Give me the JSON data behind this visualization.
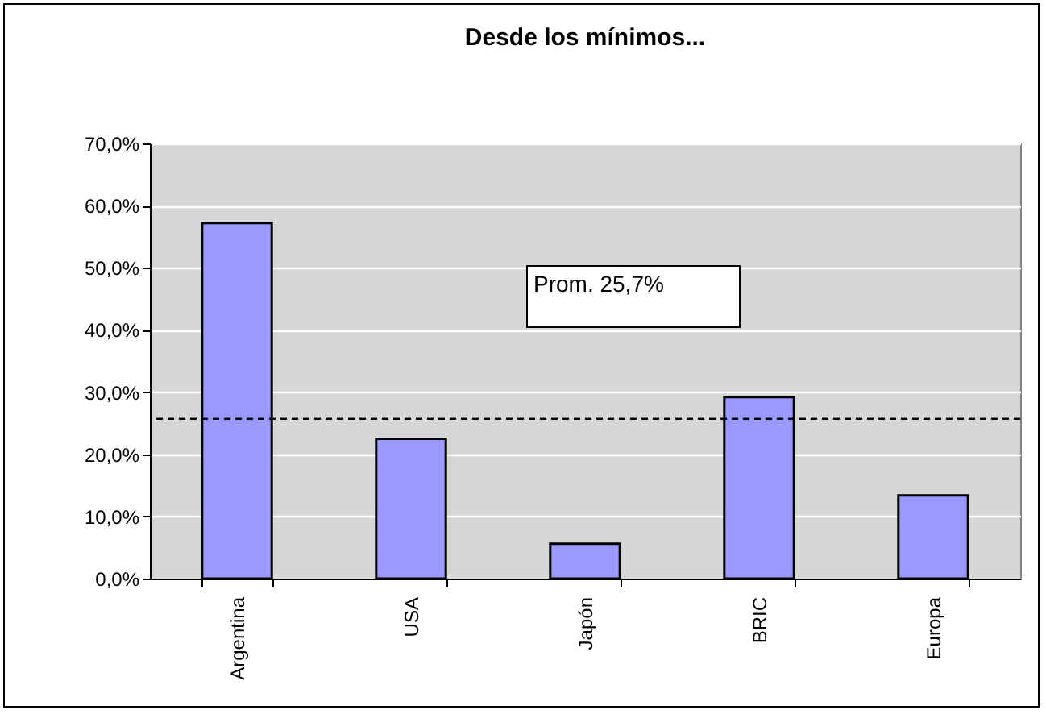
{
  "chart_data": {
    "type": "bar",
    "title": "Desde los mínimos...",
    "categories": [
      "Argentina",
      "USA",
      "Japón",
      "BRIC",
      "Europa"
    ],
    "values": [
      57.2,
      22.5,
      5.6,
      29.2,
      13.4
    ],
    "color": "#9999ff",
    "ylim": [
      0,
      70
    ],
    "yticks": [
      {
        "value": 0,
        "label": "0,0%"
      },
      {
        "value": 10,
        "label": "10,0%"
      },
      {
        "value": 20,
        "label": "20,0%"
      },
      {
        "value": 30,
        "label": "30,0%"
      },
      {
        "value": 40,
        "label": "40,0%"
      },
      {
        "value": 50,
        "label": "50,0%"
      },
      {
        "value": 60,
        "label": "60,0%"
      },
      {
        "value": 70,
        "label": "70,0%"
      }
    ],
    "grid": "y",
    "ref_lines": [
      {
        "axis": "y",
        "value": 25.7,
        "label": "Prom. 25,7%",
        "color": "#000000",
        "line_style": "dashed"
      }
    ]
  }
}
